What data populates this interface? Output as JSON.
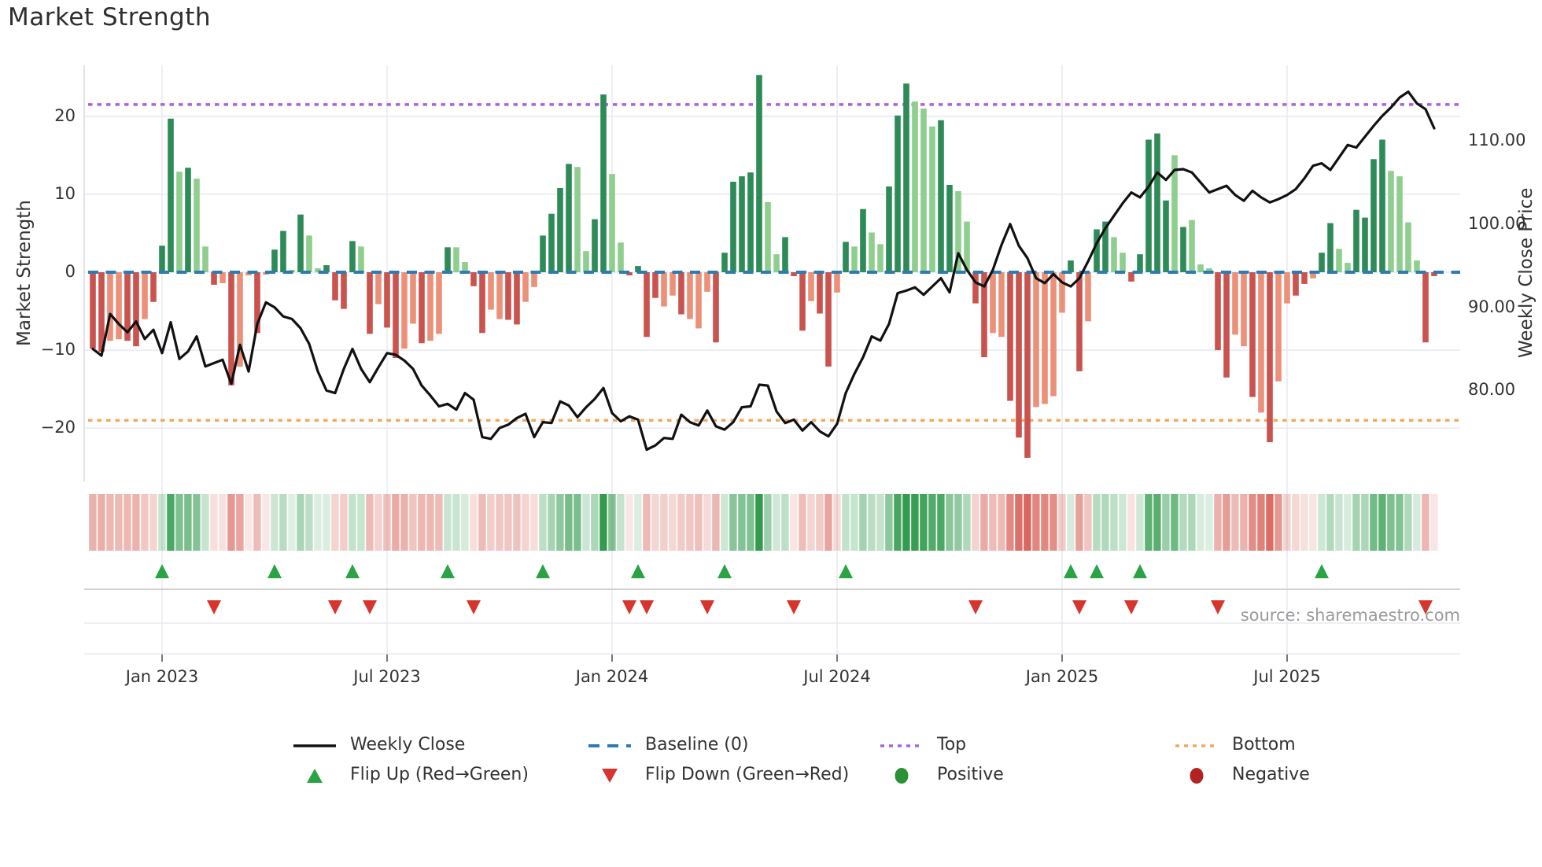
{
  "title": "Market Strength",
  "source_text": "source: sharemaestro.com",
  "axes": {
    "left_title": "Market Strength",
    "right_title": "Weekly Close Price",
    "left_ticks": [
      20,
      10,
      0,
      -10,
      -20
    ],
    "right_ticks": [
      "110.00",
      "100.00",
      "90.00",
      "80.00"
    ],
    "right_tick_values": [
      110,
      100,
      90,
      80
    ],
    "x_ticks": [
      {
        "label": "Jan 2023",
        "week": 8
      },
      {
        "label": "Jul 2023",
        "week": 34
      },
      {
        "label": "Jan 2024",
        "week": 60
      },
      {
        "label": "Jul 2024",
        "week": 86
      },
      {
        "label": "Jan 2025",
        "week": 112
      },
      {
        "label": "Jul 2025",
        "week": 138
      }
    ]
  },
  "colors": {
    "pos_dark": "#2e8b57",
    "pos_light": "#8fce8f",
    "neg_dark": "#c9534e",
    "neg_light": "#eb9179",
    "baseline_blue": "#2e7bb4",
    "top_purple": "#ab63d6",
    "bottom_orange": "#f2a860",
    "price_line": "#111111",
    "grid": "#e9ebf3",
    "spine": "#d9dce6",
    "marker_line": "#cccccc",
    "flip_up_green": "#2aa344",
    "flip_down_red": "#d7342e",
    "legend_positive": "#2a9235",
    "legend_negative": "#b22222"
  },
  "legend": {
    "rows": [
      [
        {
          "swatch": "line-black",
          "label": "Weekly Close"
        },
        {
          "swatch": "dash-blue",
          "label": "Baseline (0)"
        },
        {
          "swatch": "dot-purple",
          "label": "Top"
        },
        {
          "swatch": "dot-orange",
          "label": "Bottom"
        }
      ],
      [
        {
          "swatch": "tri-up",
          "label": "Flip Up (Red→Green)"
        },
        {
          "swatch": "tri-down",
          "label": "Flip Down (Green→Red)"
        },
        {
          "swatch": "circle-green",
          "label": "Positive"
        },
        {
          "swatch": "circle-red",
          "label": "Negative"
        }
      ]
    ]
  },
  "chart_data": {
    "type": "bar+line",
    "x_unit": "week",
    "n_weeks": 156,
    "x_range_note": "weekly data from Nov 2022 to Nov 2025; week 0 = early Nov 2022",
    "ylabel_left": "Market Strength",
    "ylabel_right": "Weekly Close Price",
    "ylim_left": [
      -26.8,
      26.5
    ],
    "ylim_right": [
      69,
      119
    ],
    "baseline": 0,
    "top_threshold": 21.5,
    "bottom_threshold": -19.0,
    "grid": true,
    "legend_position": "bottom",
    "strength_values": [
      -9.8,
      -10.2,
      -8.8,
      -8.6,
      -8.8,
      -9.5,
      -6.0,
      -3.8,
      3.4,
      19.7,
      12.9,
      13.4,
      12.0,
      3.3,
      -1.6,
      -1.4,
      -14.5,
      -12.1,
      -0.4,
      -7.8,
      -0.3,
      2.9,
      5.3,
      0.3,
      7.4,
      4.7,
      0.5,
      0.9,
      -3.6,
      -4.7,
      4.0,
      3.3,
      -7.9,
      -4.1,
      -7.1,
      -11.0,
      -9.8,
      -6.6,
      -9.1,
      -8.8,
      -7.9,
      3.2,
      3.2,
      1.3,
      -1.8,
      -7.8,
      -4.8,
      -6.0,
      -6.1,
      -6.7,
      -3.8,
      -1.9,
      4.7,
      7.5,
      10.8,
      13.9,
      13.5,
      2.7,
      6.8,
      22.8,
      12.6,
      3.8,
      -0.4,
      0.8,
      -8.3,
      -3.3,
      -4.4,
      -3.0,
      -5.4,
      -6.0,
      -7.2,
      -2.5,
      -9.0,
      2.5,
      11.6,
      12.3,
      12.8,
      25.3,
      9.0,
      2.3,
      4.5,
      -0.5,
      -7.5,
      -3.7,
      -5.3,
      -12.1,
      -2.6,
      3.9,
      3.3,
      8.1,
      5.1,
      3.6,
      11.0,
      20.1,
      24.2,
      21.9,
      21.0,
      18.7,
      19.5,
      11.2,
      10.4,
      6.5,
      -4.0,
      -10.9,
      -7.8,
      -8.3,
      -16.5,
      -21.2,
      -23.8,
      -17.3,
      -16.9,
      -15.9,
      -5.2,
      1.5,
      -12.7,
      -6.3,
      5.5,
      6.5,
      4.5,
      2.5,
      -1.2,
      2.3,
      17.0,
      17.8,
      9.2,
      15.0,
      5.8,
      6.7,
      1.0,
      0.5,
      -10.0,
      -13.5,
      -8.0,
      -9.5,
      -16.0,
      -18.0,
      -21.8,
      -14.0,
      -4.0,
      -3.0,
      -1.5,
      -0.8,
      2.5,
      6.3,
      3.0,
      1.2,
      8.0,
      7.0,
      14.5,
      17.0,
      13.0,
      12.3,
      6.4,
      1.5,
      -9.0,
      -0.5
    ],
    "strength_shades": [
      "d",
      "d",
      "l",
      "l",
      "d",
      "d",
      "l",
      "d",
      "d",
      "d",
      "l",
      "d",
      "l",
      "l",
      "d",
      "l",
      "d",
      "l",
      "l",
      "d",
      "l",
      "d",
      "d",
      "l",
      "d",
      "l",
      "l",
      "d",
      "d",
      "d",
      "d",
      "l",
      "d",
      "l",
      "d",
      "d",
      "l",
      "l",
      "d",
      "l",
      "l",
      "d",
      "l",
      "l",
      "d",
      "d",
      "l",
      "l",
      "d",
      "d",
      "l",
      "l",
      "d",
      "d",
      "d",
      "d",
      "l",
      "l",
      "d",
      "d",
      "l",
      "l",
      "d",
      "d",
      "d",
      "d",
      "l",
      "l",
      "d",
      "l",
      "l",
      "l",
      "d",
      "d",
      "d",
      "d",
      "d",
      "d",
      "l",
      "l",
      "d",
      "d",
      "d",
      "l",
      "d",
      "d",
      "l",
      "d",
      "l",
      "d",
      "l",
      "l",
      "d",
      "d",
      "d",
      "l",
      "l",
      "l",
      "d",
      "d",
      "l",
      "l",
      "d",
      "d",
      "l",
      "l",
      "d",
      "d",
      "d",
      "l",
      "l",
      "l",
      "l",
      "d",
      "d",
      "l",
      "d",
      "d",
      "l",
      "l",
      "d",
      "d",
      "d",
      "d",
      "d",
      "l",
      "d",
      "l",
      "l",
      "l",
      "d",
      "d",
      "l",
      "l",
      "d",
      "l",
      "d",
      "l",
      "l",
      "d",
      "d",
      "l",
      "d",
      "d",
      "l",
      "l",
      "d",
      "d",
      "d",
      "d",
      "l",
      "l",
      "l",
      "l",
      "d",
      "d"
    ],
    "weekly_close": [
      85.0,
      84.2,
      89.2,
      88.0,
      87.0,
      88.3,
      86.2,
      87.3,
      84.5,
      88.2,
      83.8,
      84.7,
      86.5,
      82.9,
      83.3,
      83.7,
      80.8,
      85.5,
      82.3,
      88.0,
      90.6,
      90.0,
      88.9,
      88.6,
      87.5,
      85.6,
      82.3,
      80.0,
      79.7,
      82.6,
      85.0,
      82.6,
      81.0,
      82.8,
      84.5,
      84.3,
      83.6,
      82.6,
      80.6,
      79.4,
      78.1,
      78.4,
      77.7,
      79.7,
      78.9,
      74.4,
      74.2,
      75.5,
      75.9,
      76.7,
      77.2,
      74.4,
      76.2,
      76.1,
      78.7,
      78.2,
      76.8,
      78.0,
      79.0,
      80.3,
      77.3,
      76.3,
      76.9,
      76.5,
      72.9,
      73.4,
      74.3,
      74.2,
      77.1,
      76.2,
      75.8,
      77.6,
      75.7,
      75.3,
      76.2,
      78.0,
      78.1,
      80.7,
      80.6,
      77.5,
      76.1,
      76.5,
      75.2,
      76.2,
      75.1,
      74.5,
      76.0,
      79.7,
      82.0,
      84.0,
      86.5,
      86.0,
      88.0,
      91.7,
      92.0,
      92.4,
      91.5,
      92.5,
      93.5,
      91.8,
      96.5,
      94.5,
      93.0,
      92.5,
      94.5,
      97.5,
      100.0,
      97.4,
      95.9,
      93.5,
      92.9,
      94.0,
      93.0,
      92.5,
      93.5,
      95.5,
      97.7,
      99.5,
      101.0,
      102.5,
      103.8,
      103.2,
      104.5,
      106.2,
      105.3,
      106.5,
      106.6,
      106.2,
      105.0,
      103.8,
      104.2,
      104.6,
      103.5,
      102.8,
      104.0,
      103.2,
      102.6,
      103.0,
      103.5,
      104.2,
      105.5,
      107.0,
      107.3,
      106.5,
      108.0,
      109.5,
      109.2,
      110.5,
      111.8,
      113.0,
      114.0,
      115.2,
      115.9,
      114.5,
      113.8,
      111.5
    ],
    "flip_up_weeks": [
      8,
      21,
      30,
      41,
      52,
      63,
      73,
      87,
      113,
      116,
      121,
      142
    ],
    "flip_down_weeks": [
      14,
      28,
      32,
      44,
      62,
      64,
      71,
      81,
      102,
      114,
      120,
      130,
      154
    ],
    "series_names": {
      "bars": "Market Strength",
      "line": "Weekly Close",
      "heatmap": "strength intensity strip"
    }
  }
}
